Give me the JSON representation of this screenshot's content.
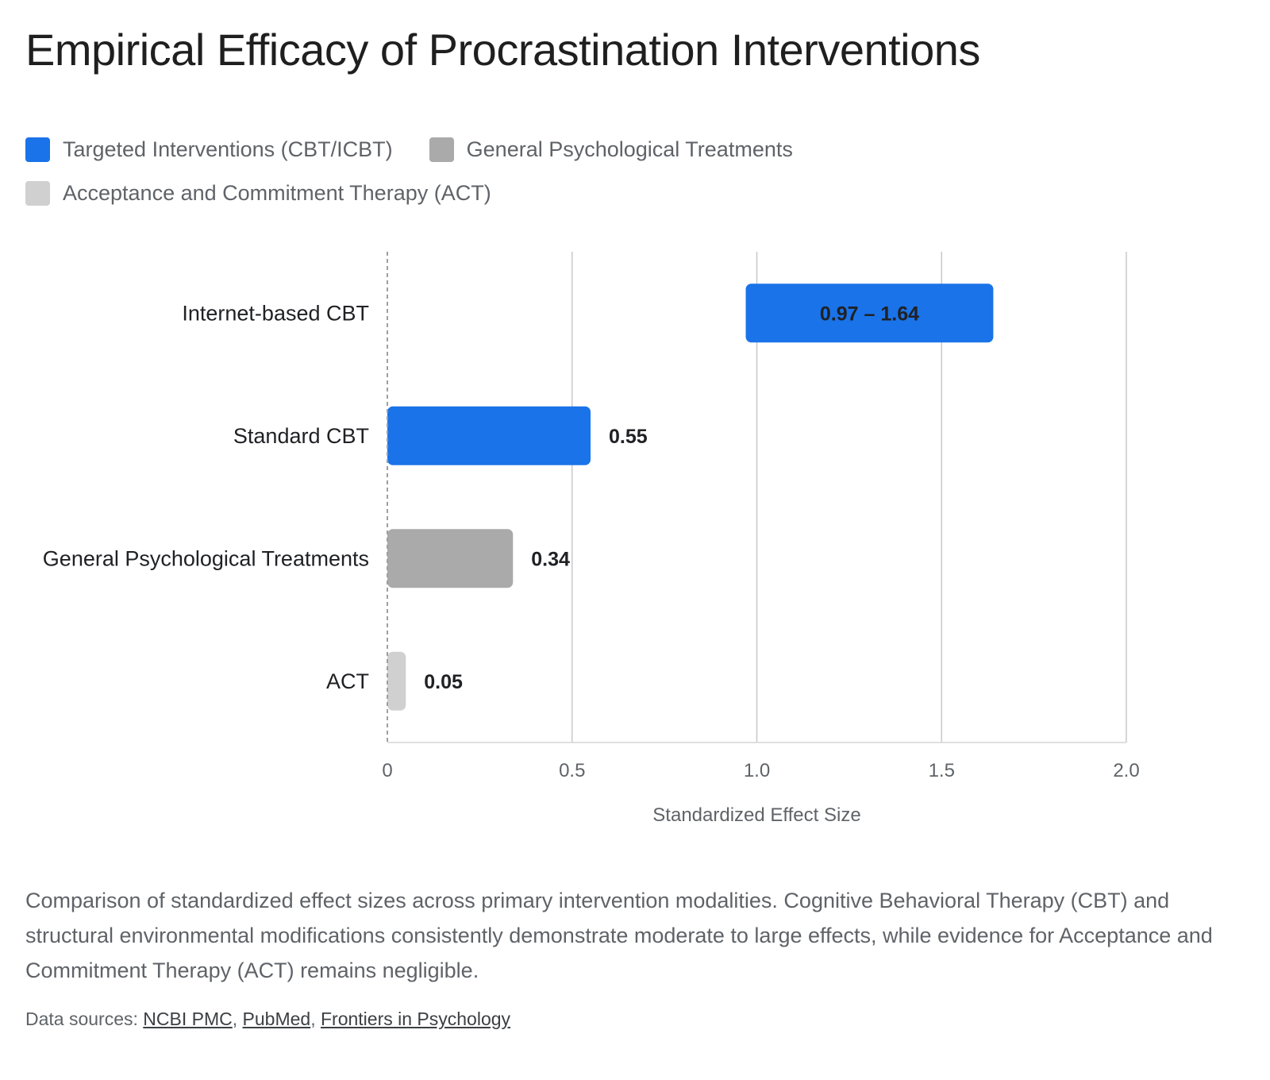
{
  "title": "Empirical Efficacy of Procrastination Interventions",
  "legend": [
    {
      "label": "Targeted Interventions (CBT/ICBT)",
      "color": "#1a73e8"
    },
    {
      "label": "General Psychological Treatments",
      "color": "#aaaaaa"
    },
    {
      "label": "Acceptance and Commitment Therapy (ACT)",
      "color": "#d0d0d0"
    }
  ],
  "chart_data": {
    "type": "bar",
    "orientation": "horizontal",
    "title": "Empirical Efficacy of Procrastination Interventions",
    "categories": [
      "Internet-based CBT",
      "Standard CBT",
      "General Psychological Treatments",
      "ACT"
    ],
    "bars": [
      {
        "category": "Internet-based CBT",
        "start": 0.97,
        "end": 1.64,
        "label": "0.97 – 1.64",
        "series": "Targeted Interventions (CBT/ICBT)",
        "color": "#1a73e8"
      },
      {
        "category": "Standard CBT",
        "start": 0,
        "end": 0.55,
        "label": "0.55",
        "series": "Targeted Interventions (CBT/ICBT)",
        "color": "#1a73e8"
      },
      {
        "category": "General Psychological Treatments",
        "start": 0,
        "end": 0.34,
        "label": "0.34",
        "series": "General Psychological Treatments",
        "color": "#aaaaaa"
      },
      {
        "category": "ACT",
        "start": 0,
        "end": 0.05,
        "label": "0.05",
        "series": "Acceptance and Commitment Therapy (ACT)",
        "color": "#d0d0d0"
      }
    ],
    "xlabel": "Standardized Effect Size",
    "ylabel": "",
    "xlim": [
      0,
      2.0
    ],
    "xticks": [
      0,
      0.5,
      1.0,
      1.5,
      2.0
    ],
    "xtick_labels": [
      "0",
      "0.5",
      "1.0",
      "1.5",
      "2.0"
    ],
    "grid": true,
    "legend_position": "top-left"
  },
  "caption": "Comparison of standardized effect sizes across primary intervention modalities. Cognitive Behavioral Therapy (CBT) and structural environmental modifications consistently demonstrate moderate to large effects, while evidence for Acceptance and Commitment Therapy (ACT) remains negligible.",
  "sources": {
    "prefix": "Data sources: ",
    "links": [
      "NCBI PMC",
      "PubMed",
      "Frontiers in Psychology"
    ],
    "separator": ", "
  }
}
